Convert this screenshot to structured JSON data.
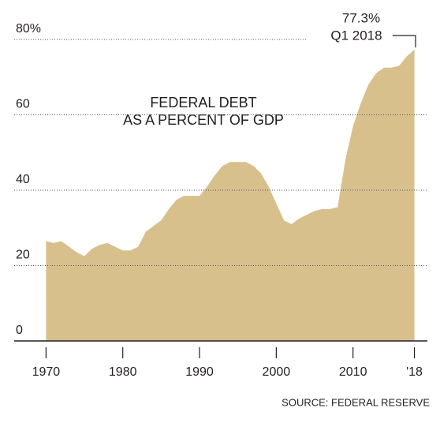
{
  "chart_data": {
    "type": "area",
    "title_lines": [
      "FEDERAL DEBT",
      "AS A PERCENT OF GDP"
    ],
    "source": "SOURCE: FEDERAL RESERVE",
    "annotation": {
      "value_label": "77.3%",
      "label": "Q1 2018"
    },
    "color": "#d8c08d",
    "x": [
      1970,
      1971,
      1972,
      1973,
      1974,
      1975,
      1976,
      1977,
      1978,
      1979,
      1980,
      1981,
      1982,
      1983,
      1984,
      1985,
      1986,
      1987,
      1988,
      1989,
      1990,
      1991,
      1992,
      1993,
      1994,
      1995,
      1996,
      1997,
      1998,
      1999,
      2000,
      2001,
      2002,
      2003,
      2004,
      2005,
      2006,
      2007,
      2008,
      2009,
      2010,
      2011,
      2012,
      2013,
      2014,
      2015,
      2016,
      2017,
      2018
    ],
    "values": [
      26.5,
      26,
      26.5,
      25,
      23.5,
      22.5,
      24.5,
      25.5,
      26,
      25,
      24,
      24,
      25,
      29,
      30.5,
      32,
      35,
      37.5,
      38.5,
      38.5,
      38.5,
      41,
      44,
      46.5,
      47.5,
      47.5,
      47.5,
      46.5,
      44.5,
      41,
      36.5,
      32,
      31,
      32.5,
      33.5,
      34.5,
      35,
      35,
      35.5,
      48,
      57,
      63,
      68,
      71,
      72.5,
      72.5,
      73,
      75.5,
      77.3
    ],
    "xlim": [
      1964,
      2020
    ],
    "xticks": [
      1970,
      1980,
      1990,
      2000,
      2010,
      {
        "value": 2018,
        "label": "'18"
      }
    ],
    "ylim": [
      0,
      80
    ],
    "yticks": [
      0,
      20,
      40,
      60,
      {
        "value": 80,
        "label": "80%"
      }
    ],
    "grid": true
  }
}
